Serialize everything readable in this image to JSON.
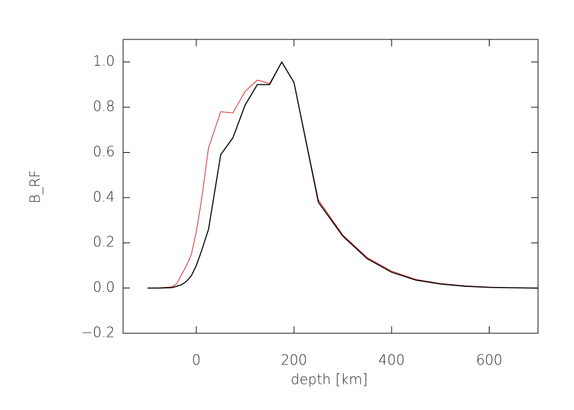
{
  "chart_data": {
    "type": "line",
    "xlabel": "depth [km]",
    "ylabel": "B_RF",
    "x": [
      -100,
      -75,
      -50,
      -40,
      -30,
      -20,
      -10,
      0,
      10,
      25,
      50,
      75,
      100,
      125,
      150,
      175,
      200,
      250,
      300,
      350,
      400,
      450,
      500,
      550,
      600,
      650,
      700
    ],
    "series": [
      {
        "color": "#d62020",
        "values": [
          0,
          0.001,
          0.005,
          0.02,
          0.06,
          0.1,
          0.15,
          0.25,
          0.38,
          0.62,
          0.78,
          0.775,
          0.87,
          0.92,
          0.905,
          1.0,
          0.91,
          0.39,
          0.235,
          0.135,
          0.075,
          0.038,
          0.02,
          0.01,
          0.004,
          0.001,
          0
        ]
      },
      {
        "color": "#000000",
        "values": [
          0,
          0,
          0.002,
          0.008,
          0.015,
          0.03,
          0.055,
          0.1,
          0.16,
          0.26,
          0.59,
          0.665,
          0.81,
          0.9,
          0.9,
          1.0,
          0.91,
          0.38,
          0.23,
          0.13,
          0.07,
          0.035,
          0.018,
          0.008,
          0.003,
          0.001,
          0
        ]
      }
    ],
    "xlim": [
      -150,
      700
    ],
    "ylim": [
      -0.2,
      1.1
    ],
    "xticks": [
      0,
      200,
      400,
      600
    ],
    "yticks": [
      {
        "value": -0.2,
        "label": "−0.2"
      },
      {
        "value": 0,
        "label": "0.0"
      },
      0.2,
      0.4,
      0.6,
      0.8,
      {
        "value": 1.0,
        "label": "1.0"
      }
    ]
  }
}
